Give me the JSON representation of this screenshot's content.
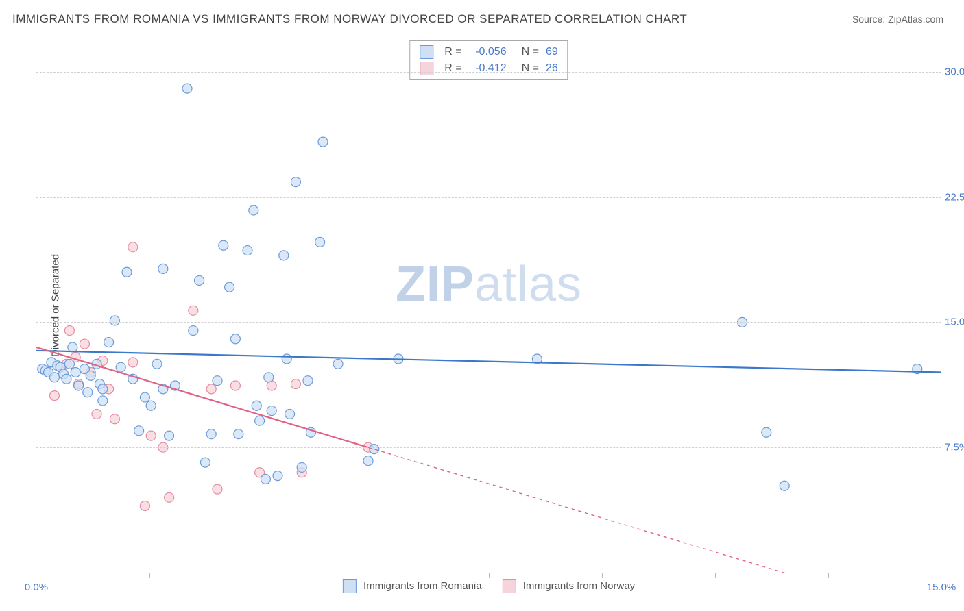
{
  "title": "IMMIGRANTS FROM ROMANIA VS IMMIGRANTS FROM NORWAY DIVORCED OR SEPARATED CORRELATION CHART",
  "source_label": "Source:",
  "source_name": "ZipAtlas.com",
  "ylabel": "Divorced or Separated",
  "watermark_a": "ZIP",
  "watermark_b": "atlas",
  "chart": {
    "type": "scatter",
    "xlim": [
      0,
      15
    ],
    "ylim": [
      0,
      32
    ],
    "x_ticks_labeled": [
      {
        "v": 0.0,
        "label": "0.0%"
      },
      {
        "v": 15.0,
        "label": "15.0%"
      }
    ],
    "x_ticks_minor": [
      1.875,
      3.75,
      5.625,
      7.5,
      9.375,
      11.25,
      13.125
    ],
    "y_ticks": [
      {
        "v": 7.5,
        "label": "7.5%"
      },
      {
        "v": 15.0,
        "label": "15.0%"
      },
      {
        "v": 22.5,
        "label": "22.5%"
      },
      {
        "v": 30.0,
        "label": "30.0%"
      }
    ],
    "grid_color": "#d0d0d0",
    "background_color": "#ffffff",
    "marker_radius": 7,
    "marker_stroke_width": 1.2,
    "series": [
      {
        "name": "Immigrants from Romania",
        "fill": "#cfe0f4",
        "stroke": "#6a9bd8",
        "line_color": "#3b78c9",
        "r_value": "-0.056",
        "n_value": "69",
        "trend": {
          "x1": 0,
          "y1": 13.3,
          "x2": 15,
          "y2": 12.0,
          "dash_after_x": 15
        },
        "points": [
          [
            0.1,
            12.2
          ],
          [
            0.15,
            12.1
          ],
          [
            0.2,
            12.0
          ],
          [
            0.25,
            12.6
          ],
          [
            0.3,
            11.7
          ],
          [
            0.35,
            12.4
          ],
          [
            0.4,
            12.3
          ],
          [
            0.45,
            11.9
          ],
          [
            0.5,
            11.6
          ],
          [
            0.55,
            12.5
          ],
          [
            0.6,
            13.5
          ],
          [
            0.65,
            12.0
          ],
          [
            0.7,
            11.2
          ],
          [
            0.8,
            12.2
          ],
          [
            0.85,
            10.8
          ],
          [
            0.9,
            11.8
          ],
          [
            1.0,
            12.5
          ],
          [
            1.05,
            11.3
          ],
          [
            1.1,
            11.0
          ],
          [
            1.1,
            10.3
          ],
          [
            1.2,
            13.8
          ],
          [
            1.3,
            15.1
          ],
          [
            1.4,
            12.3
          ],
          [
            1.5,
            18.0
          ],
          [
            1.6,
            11.6
          ],
          [
            1.7,
            8.5
          ],
          [
            1.8,
            10.5
          ],
          [
            1.9,
            10.0
          ],
          [
            2.0,
            12.5
          ],
          [
            2.1,
            11.0
          ],
          [
            2.1,
            18.2
          ],
          [
            2.2,
            8.2
          ],
          [
            2.3,
            11.2
          ],
          [
            2.5,
            29.0
          ],
          [
            2.6,
            14.5
          ],
          [
            2.7,
            17.5
          ],
          [
            2.8,
            6.6
          ],
          [
            2.9,
            8.3
          ],
          [
            3.0,
            11.5
          ],
          [
            3.1,
            19.6
          ],
          [
            3.2,
            17.1
          ],
          [
            3.3,
            14.0
          ],
          [
            3.35,
            8.3
          ],
          [
            3.5,
            19.3
          ],
          [
            3.6,
            21.7
          ],
          [
            3.65,
            10.0
          ],
          [
            3.7,
            9.1
          ],
          [
            3.8,
            5.6
          ],
          [
            3.85,
            11.7
          ],
          [
            3.9,
            9.7
          ],
          [
            4.0,
            5.8
          ],
          [
            4.1,
            19.0
          ],
          [
            4.15,
            12.8
          ],
          [
            4.2,
            9.5
          ],
          [
            4.3,
            23.4
          ],
          [
            4.4,
            6.3
          ],
          [
            4.5,
            11.5
          ],
          [
            4.55,
            8.4
          ],
          [
            4.7,
            19.8
          ],
          [
            4.75,
            25.8
          ],
          [
            5.0,
            12.5
          ],
          [
            5.5,
            6.7
          ],
          [
            5.6,
            7.4
          ],
          [
            6.0,
            12.8
          ],
          [
            8.3,
            12.8
          ],
          [
            11.7,
            15.0
          ],
          [
            12.1,
            8.4
          ],
          [
            12.4,
            5.2
          ],
          [
            14.6,
            12.2
          ]
        ]
      },
      {
        "name": "Immigrants from Norway",
        "fill": "#f6d4db",
        "stroke": "#e78ba1",
        "line_color": "#e26184",
        "r_value": "-0.412",
        "n_value": "26",
        "trend": {
          "x1": 0,
          "y1": 13.5,
          "x2": 5.5,
          "y2": 7.5,
          "dash_after_x": 5.5,
          "x3": 13.3,
          "y3": -1.0
        },
        "points": [
          [
            0.3,
            10.6
          ],
          [
            0.5,
            12.5
          ],
          [
            0.55,
            14.5
          ],
          [
            0.65,
            12.9
          ],
          [
            0.7,
            11.3
          ],
          [
            0.8,
            13.7
          ],
          [
            0.9,
            12.0
          ],
          [
            1.0,
            9.5
          ],
          [
            1.1,
            12.7
          ],
          [
            1.2,
            11.0
          ],
          [
            1.3,
            9.2
          ],
          [
            1.6,
            12.6
          ],
          [
            1.6,
            19.5
          ],
          [
            1.8,
            4.0
          ],
          [
            1.9,
            8.2
          ],
          [
            2.1,
            7.5
          ],
          [
            2.2,
            4.5
          ],
          [
            2.6,
            15.7
          ],
          [
            2.9,
            11.0
          ],
          [
            3.0,
            5.0
          ],
          [
            3.3,
            11.2
          ],
          [
            3.7,
            6.0
          ],
          [
            3.9,
            11.2
          ],
          [
            4.3,
            11.3
          ],
          [
            4.4,
            6.0
          ],
          [
            5.5,
            7.5
          ]
        ]
      }
    ]
  },
  "legend": {
    "r_label": "R =",
    "n_label": "N ="
  }
}
